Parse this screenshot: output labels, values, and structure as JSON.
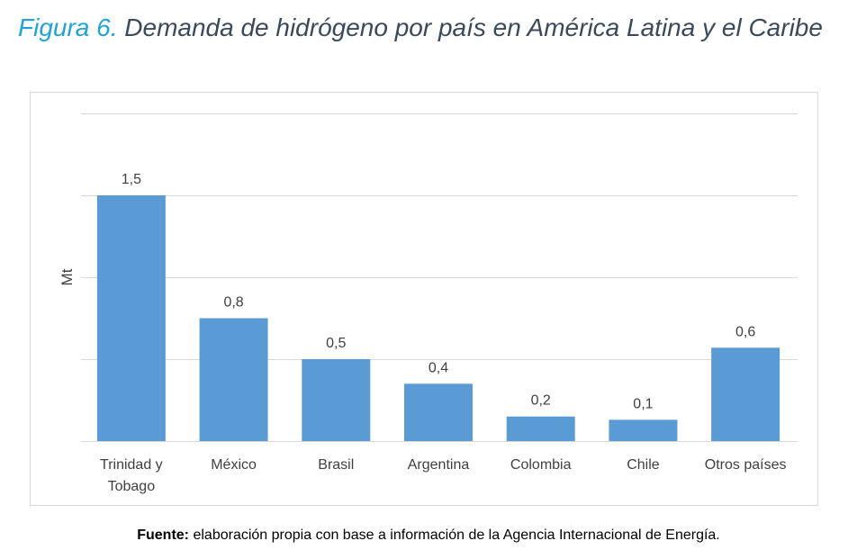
{
  "figure": {
    "label": "Figura 6.",
    "title": "Demanda de hidrógeno por país en América Latina y el Caribe"
  },
  "caption": {
    "label": "Fuente:",
    "text": "elaboración propia con base a información de la Agencia Internacional de Energía."
  },
  "colors": {
    "bar": "#5b9bd5",
    "grid": "#d9d9d9",
    "text": "#404040"
  },
  "chart_data": {
    "type": "bar",
    "title": "",
    "xlabel": "",
    "ylabel": "Mt",
    "categories": [
      "Trinidad y Tobago",
      "México",
      "Brasil",
      "Argentina",
      "Colombia",
      "Chile",
      "Otros países"
    ],
    "values": [
      1.5,
      0.75,
      0.5,
      0.35,
      0.15,
      0.13,
      0.57
    ],
    "value_labels": [
      "1,5",
      "0,8",
      "0,5",
      "0,4",
      "0,2",
      "0,1",
      "0,6"
    ],
    "ylim": [
      0,
      2
    ],
    "grid": true,
    "y_tick_labels_shown": false,
    "legend": "none"
  }
}
